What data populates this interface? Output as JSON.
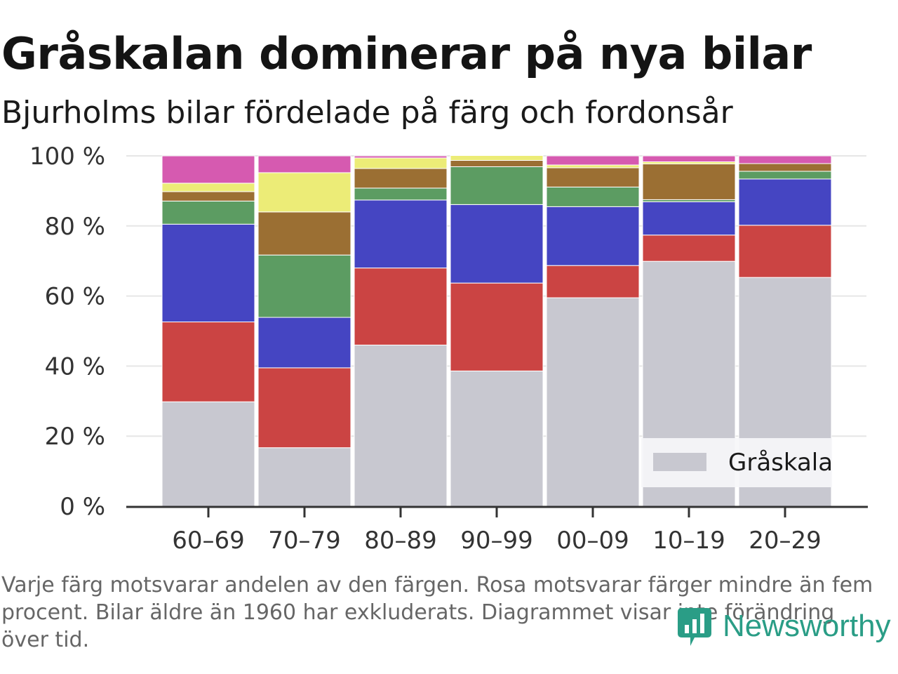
{
  "title": "Gråskalan dominerar på nya bilar",
  "subtitle": "Bjurholms bilar fördelade på färg och fordonsår",
  "footnote": "Varje färg motsvarar andelen av den färgen. Rosa motsvarar färger mindre än fem procent. Bilar äldre än 1960 har exkluderats. Diagrammet visar inte förändring över tid.",
  "logo": {
    "text": "Newsworthy",
    "icon": "bar-chart-icon",
    "color": "#2a9d86"
  },
  "chart_data": {
    "type": "bar",
    "stacked": true,
    "categories": [
      "60–69",
      "70–79",
      "80–89",
      "90–99",
      "00–09",
      "10–19",
      "20–29"
    ],
    "ylim": [
      0,
      100
    ],
    "yticks": [
      0,
      20,
      40,
      60,
      80,
      100
    ],
    "ytick_labels": [
      "0 %",
      "20 %",
      "40 %",
      "60 %",
      "80 %",
      "100 %"
    ],
    "grid": true,
    "legend_position": "bottom-right",
    "legend": [
      {
        "name": "Gråskala",
        "color": "#c8c8d0"
      }
    ],
    "series": [
      {
        "name": "Gråskala",
        "color": "#c8c8d0",
        "values": [
          29.8,
          16.7,
          46.0,
          38.6,
          59.5,
          69.9,
          65.3
        ]
      },
      {
        "color": "#cb4443",
        "values": [
          22.8,
          22.8,
          22.0,
          25.1,
          9.2,
          7.5,
          14.9
        ]
      },
      {
        "color": "#4545c2",
        "values": [
          27.9,
          14.4,
          19.4,
          22.4,
          16.8,
          9.5,
          13.2
        ]
      },
      {
        "color": "#5c9c62",
        "values": [
          6.6,
          17.8,
          3.4,
          10.8,
          5.6,
          0.6,
          2.2
        ]
      },
      {
        "color": "#9b6f33",
        "values": [
          2.7,
          12.3,
          5.6,
          1.8,
          5.5,
          10.2,
          2.2
        ]
      },
      {
        "color": "#ecec77",
        "values": [
          2.4,
          11.2,
          3.0,
          1.4,
          0.8,
          0.6,
          0.0
        ]
      },
      {
        "color": "#d65ab0",
        "values": [
          7.8,
          4.8,
          0.6,
          0.0,
          2.6,
          1.7,
          2.2
        ]
      }
    ]
  }
}
